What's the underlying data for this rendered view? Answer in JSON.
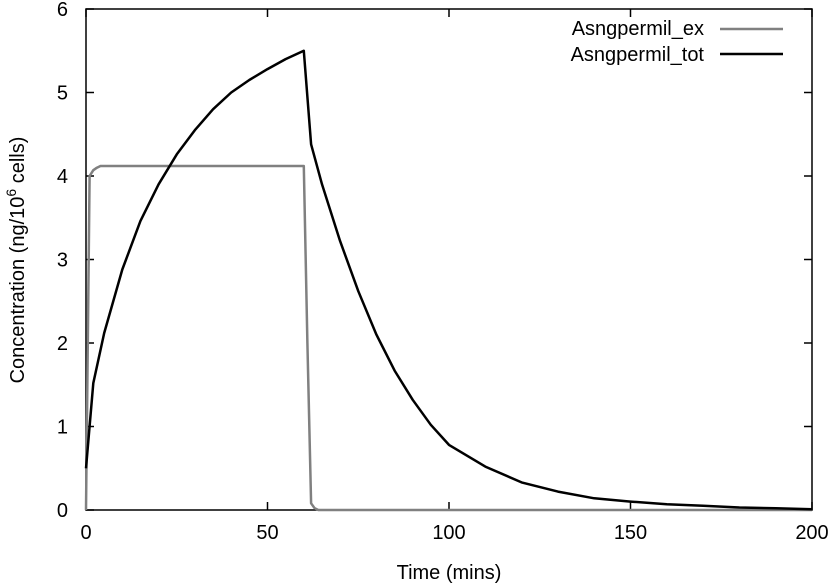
{
  "chart_data": {
    "type": "line",
    "xlabel": "Time (mins)",
    "ylabel": {
      "prefix": "Concentration (ng/10",
      "superscript": "6",
      "suffix": " cells)"
    },
    "xlim": [
      0,
      200
    ],
    "ylim": [
      0,
      6
    ],
    "x_ticks": [
      0,
      50,
      100,
      150,
      200
    ],
    "y_ticks": [
      0,
      1,
      2,
      3,
      4,
      5,
      6
    ],
    "grid": false,
    "legend_position": "top-right",
    "series": [
      {
        "name": "Asngpermil_ex",
        "color": "#808080",
        "x": [
          0,
          1,
          2,
          3,
          4,
          5,
          10,
          20,
          30,
          40,
          50,
          59,
          60,
          61,
          62,
          63,
          64,
          65,
          80,
          100,
          150,
          200
        ],
        "y": [
          0.0,
          4.0,
          4.07,
          4.1,
          4.12,
          4.12,
          4.12,
          4.12,
          4.12,
          4.12,
          4.12,
          4.12,
          4.12,
          2.0,
          0.08,
          0.02,
          0.0,
          0.0,
          0.0,
          0.0,
          0.0,
          0.0
        ]
      },
      {
        "name": "Asngpermil_tot",
        "color": "#000000",
        "x": [
          0,
          2,
          5,
          10,
          15,
          20,
          25,
          30,
          35,
          40,
          45,
          50,
          55,
          60,
          62,
          65,
          70,
          75,
          80,
          85,
          90,
          95,
          100,
          110,
          120,
          130,
          140,
          150,
          160,
          170,
          180,
          190,
          200
        ],
        "y": [
          0.5,
          1.52,
          2.12,
          2.88,
          3.46,
          3.9,
          4.26,
          4.55,
          4.8,
          5.0,
          5.15,
          5.28,
          5.4,
          5.5,
          4.38,
          3.9,
          3.22,
          2.62,
          2.1,
          1.67,
          1.32,
          1.02,
          0.78,
          0.52,
          0.33,
          0.22,
          0.14,
          0.1,
          0.07,
          0.05,
          0.03,
          0.02,
          0.01
        ]
      }
    ]
  }
}
